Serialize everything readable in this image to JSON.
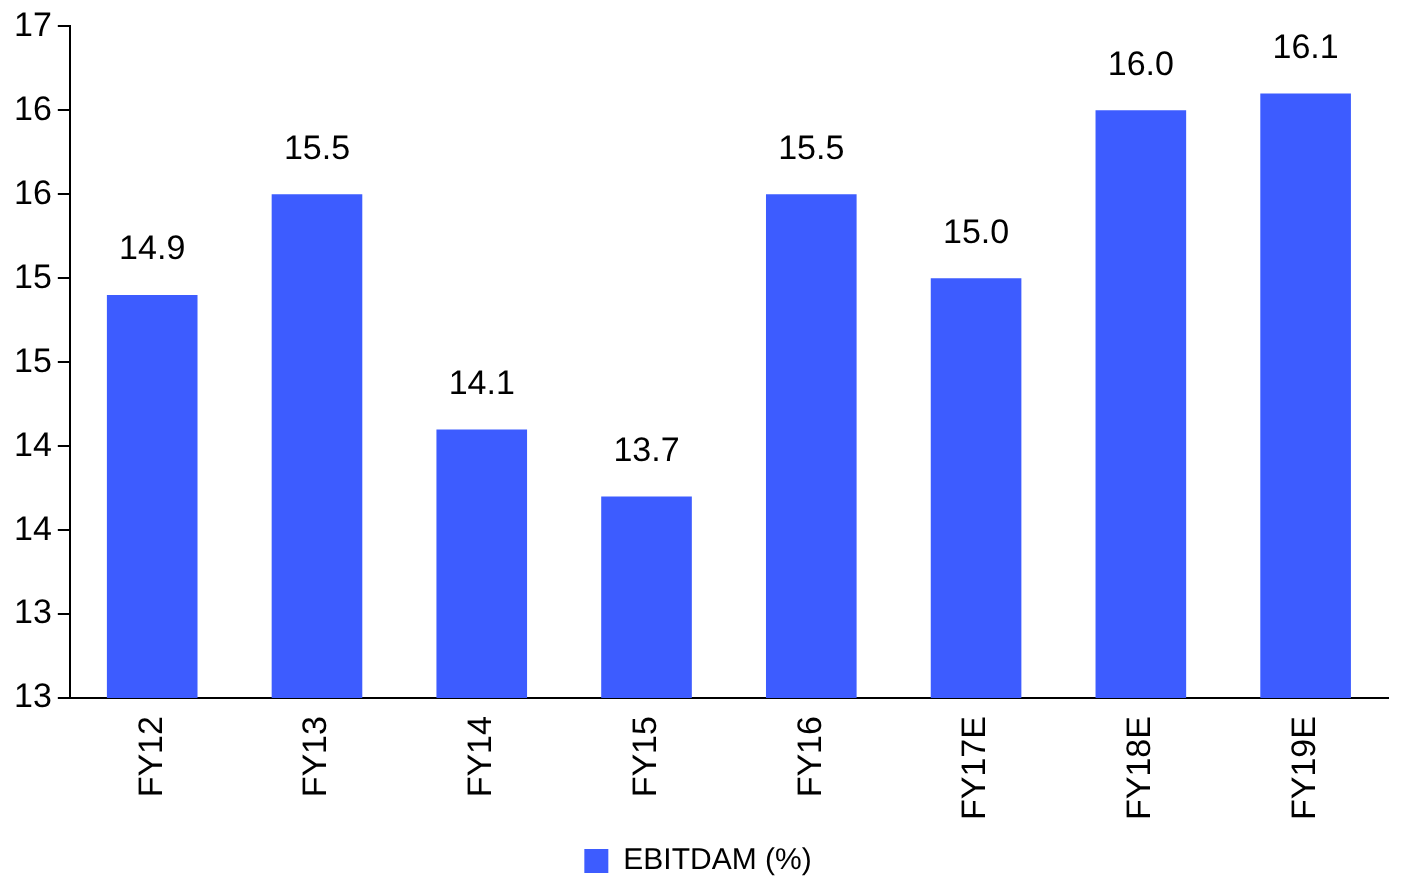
{
  "chart_data": {
    "type": "bar",
    "categories": [
      "FY12",
      "FY13",
      "FY14",
      "FY15",
      "FY16",
      "FY17E",
      "FY18E",
      "FY19E"
    ],
    "series": [
      {
        "name": "EBITDAM (%)",
        "color": "#3d5cff",
        "values": [
          14.9,
          15.5,
          14.1,
          13.7,
          15.5,
          15.0,
          16.0,
          16.1
        ],
        "value_labels": [
          "14.9",
          "15.5",
          "14.1",
          "13.7",
          "15.5",
          "15.0",
          "16.0",
          "16.1"
        ]
      }
    ],
    "ylim": [
      12.5,
      16.5
    ],
    "yticks": [
      {
        "value": 12.5,
        "label": "13"
      },
      {
        "value": 13,
        "label": "13"
      },
      {
        "value": 13.5,
        "label": "14"
      },
      {
        "value": 14,
        "label": "14"
      },
      {
        "value": 14.5,
        "label": "15"
      },
      {
        "value": 15,
        "label": "15"
      },
      {
        "value": 15.5,
        "label": "16"
      },
      {
        "value": 16,
        "label": "16"
      },
      {
        "value": 16.5,
        "label": "17"
      }
    ],
    "grid": false,
    "legend": "bottom"
  }
}
